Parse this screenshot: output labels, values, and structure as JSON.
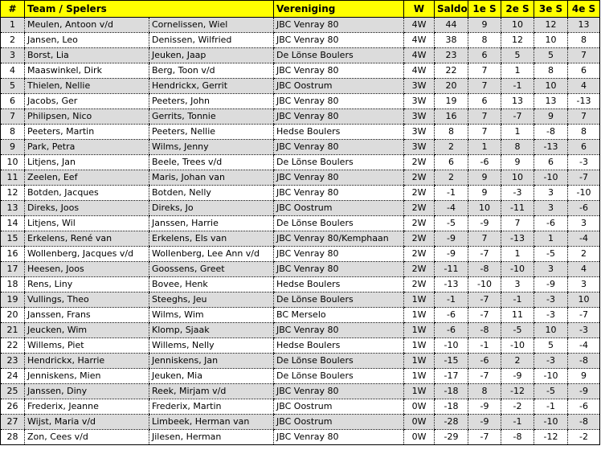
{
  "colors": {
    "header": "#ffff00",
    "odd_row": "#dcdcdc"
  },
  "headers": {
    "rank": "#",
    "team": "Team / Spelers",
    "club": "Vereniging",
    "w": "W",
    "saldo": "Saldo",
    "s1": "1e S",
    "s2": "2e S",
    "s3": "3e S",
    "s4": "4e S"
  },
  "rows": [
    [
      "1",
      "Meulen, Antoon v/d",
      "Cornelissen, Wiel",
      "JBC Venray 80",
      "4W",
      "44",
      "9",
      "10",
      "12",
      "13"
    ],
    [
      "2",
      "Jansen, Leo",
      "Denissen, Wilfried",
      "JBC Venray 80",
      "4W",
      "38",
      "8",
      "12",
      "10",
      "8"
    ],
    [
      "3",
      "Borst, Lia",
      "Jeuken, Jaap",
      "De Lönse Boulers",
      "4W",
      "23",
      "6",
      "5",
      "5",
      "7"
    ],
    [
      "4",
      "Maaswinkel, Dirk",
      "Berg, Toon v/d",
      "JBC Venray 80",
      "4W",
      "22",
      "7",
      "1",
      "8",
      "6"
    ],
    [
      "5",
      "Thielen, Nellie",
      "Hendrickx, Gerrit",
      "JBC Oostrum",
      "3W",
      "20",
      "7",
      "-1",
      "10",
      "4"
    ],
    [
      "6",
      "Jacobs, Ger",
      "Peeters, John",
      "JBC Venray 80",
      "3W",
      "19",
      "6",
      "13",
      "13",
      "-13"
    ],
    [
      "7",
      "Philipsen, Nico",
      "Gerrits, Tonnie",
      "JBC Venray 80",
      "3W",
      "16",
      "7",
      "-7",
      "9",
      "7"
    ],
    [
      "8",
      "Peeters, Martin",
      "Peeters, Nellie",
      "Hedse Boulers",
      "3W",
      "8",
      "7",
      "1",
      "-8",
      "8"
    ],
    [
      "9",
      "Park, Petra",
      "Wilms, Jenny",
      "JBC Venray 80",
      "3W",
      "2",
      "1",
      "8",
      "-13",
      "6"
    ],
    [
      "10",
      "Litjens, Jan",
      "Beele, Trees v/d",
      "De Lönse Boulers",
      "2W",
      "6",
      "-6",
      "9",
      "6",
      "-3"
    ],
    [
      "11",
      "Zeelen, Eef",
      "Maris, Johan van",
      "JBC Venray 80",
      "2W",
      "2",
      "9",
      "10",
      "-10",
      "-7"
    ],
    [
      "12",
      "Botden, Jacques",
      "Botden, Nelly",
      "JBC Venray 80",
      "2W",
      "-1",
      "9",
      "-3",
      "3",
      "-10"
    ],
    [
      "13",
      "Direks, Joos",
      "Direks, Jo",
      "JBC Oostrum",
      "2W",
      "-4",
      "10",
      "-11",
      "3",
      "-6"
    ],
    [
      "14",
      "Litjens, Wil",
      "Janssen, Harrie",
      "De Lönse Boulers",
      "2W",
      "-5",
      "-9",
      "7",
      "-6",
      "3"
    ],
    [
      "15",
      "Erkelens, René van",
      "Erkelens, Els van",
      "JBC Venray 80/Kemphaan",
      "2W",
      "-9",
      "7",
      "-13",
      "1",
      "-4"
    ],
    [
      "16",
      "Wollenberg, Jacques v/d",
      "Wollenberg, Lee Ann v/d",
      "JBC Venray 80",
      "2W",
      "-9",
      "-7",
      "1",
      "-5",
      "2"
    ],
    [
      "17",
      "Heesen, Joos",
      "Goossens, Greet",
      "JBC Venray 80",
      "2W",
      "-11",
      "-8",
      "-10",
      "3",
      "4"
    ],
    [
      "18",
      "Rens, Liny",
      "Bovee, Henk",
      "Hedse Boulers",
      "2W",
      "-13",
      "-10",
      "3",
      "-9",
      "3"
    ],
    [
      "19",
      "Vullings, Theo",
      "Steeghs, Jeu",
      "De Lönse Boulers",
      "1W",
      "-1",
      "-7",
      "-1",
      "-3",
      "10"
    ],
    [
      "20",
      "Janssen, Frans",
      "Wilms, Wim",
      "BC Merselo",
      "1W",
      "-6",
      "-7",
      "11",
      "-3",
      "-7"
    ],
    [
      "21",
      "Jeucken, Wim",
      "Klomp, Sjaak",
      "JBC Venray 80",
      "1W",
      "-6",
      "-8",
      "-5",
      "10",
      "-3"
    ],
    [
      "22",
      "Willems, Piet",
      "Willems, Nelly",
      "Hedse Boulers",
      "1W",
      "-10",
      "-1",
      "-10",
      "5",
      "-4"
    ],
    [
      "23",
      "Hendrickx, Harrie",
      "Jenniskens, Jan",
      "De Lönse Boulers",
      "1W",
      "-15",
      "-6",
      "2",
      "-3",
      "-8"
    ],
    [
      "24",
      "Jenniskens, Mien",
      "Jeuken, Mia",
      "De Lönse Boulers",
      "1W",
      "-17",
      "-7",
      "-9",
      "-10",
      "9"
    ],
    [
      "25",
      "Janssen, Diny",
      "Reek, Mirjam v/d",
      "JBC Venray 80",
      "1W",
      "-18",
      "8",
      "-12",
      "-5",
      "-9"
    ],
    [
      "26",
      "Frederix, Jeanne",
      "Frederix, Martin",
      "JBC Oostrum",
      "0W",
      "-18",
      "-9",
      "-2",
      "-1",
      "-6"
    ],
    [
      "27",
      "Wijst, Maria v/d",
      "Limbeek, Herman van",
      "JBC Oostrum",
      "0W",
      "-28",
      "-9",
      "-1",
      "-10",
      "-8"
    ],
    [
      "28",
      "Zon, Cees v/d",
      "Jilesen, Herman",
      "JBC Venray 80",
      "0W",
      "-29",
      "-7",
      "-8",
      "-12",
      "-2"
    ]
  ]
}
